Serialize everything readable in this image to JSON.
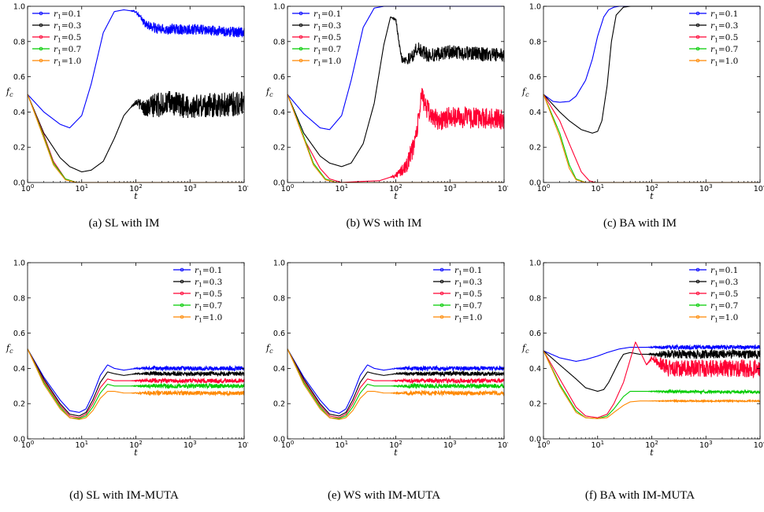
{
  "chart_data": [
    {
      "type": "line",
      "caption": "(a)  SL with IM",
      "xlabel": "t",
      "ylabel": "f_c",
      "xscale": "log",
      "xlim": [
        1,
        10000
      ],
      "ylim": [
        0,
        1.0
      ],
      "xticks": [
        "10^0",
        "10^1",
        "10^2",
        "10^3",
        "10^4"
      ],
      "yticks": [
        "0.0",
        "0.2",
        "0.4",
        "0.6",
        "0.8",
        "1.0"
      ],
      "legend_position": "top-left",
      "series": [
        {
          "name": "r1=0.1",
          "color": "#0000ff",
          "x": [
            1,
            2,
            4,
            6,
            10,
            15,
            25,
            40,
            60,
            100,
            150,
            250,
            400,
            1000,
            10000
          ],
          "y": [
            0.5,
            0.4,
            0.33,
            0.31,
            0.38,
            0.56,
            0.85,
            0.97,
            0.98,
            0.97,
            0.9,
            0.87,
            0.87,
            0.87,
            0.85
          ],
          "noise": 0.03
        },
        {
          "name": "r1=0.3",
          "color": "#000000",
          "x": [
            1,
            2,
            4,
            6,
            10,
            15,
            25,
            40,
            60,
            100,
            150,
            250,
            400,
            1000,
            10000
          ],
          "y": [
            0.5,
            0.28,
            0.14,
            0.09,
            0.06,
            0.07,
            0.12,
            0.25,
            0.38,
            0.46,
            0.42,
            0.44,
            0.45,
            0.43,
            0.45
          ],
          "noise": 0.07
        },
        {
          "name": "r1=0.5",
          "color": "#ff0033",
          "x": [
            1,
            2,
            3,
            5,
            8,
            10000
          ],
          "y": [
            0.5,
            0.27,
            0.12,
            0.02,
            0.0,
            0.0
          ],
          "noise": 0
        },
        {
          "name": "r1=0.7",
          "color": "#00cc00",
          "x": [
            1,
            2,
            3,
            5,
            8,
            10000
          ],
          "y": [
            0.5,
            0.26,
            0.11,
            0.02,
            0.0,
            0.0
          ],
          "noise": 0
        },
        {
          "name": "r1=1.0",
          "color": "#ff8800",
          "x": [
            1,
            2,
            3,
            5,
            8,
            10000
          ],
          "y": [
            0.5,
            0.25,
            0.1,
            0.015,
            0.0,
            0.0
          ],
          "noise": 0
        }
      ]
    },
    {
      "type": "line",
      "caption": "(b)  WS with IM",
      "xlabel": "t",
      "ylabel": "f_c",
      "xscale": "log",
      "xlim": [
        1,
        10000
      ],
      "ylim": [
        0,
        1.0
      ],
      "xticks": [
        "10^0",
        "10^1",
        "10^2",
        "10^3",
        "10^4"
      ],
      "yticks": [
        "0.0",
        "0.2",
        "0.4",
        "0.6",
        "0.8",
        "1.0"
      ],
      "legend_position": "top-left",
      "series": [
        {
          "name": "r1=0.1",
          "color": "#0000ff",
          "x": [
            1,
            2,
            4,
            6,
            10,
            15,
            25,
            40,
            60,
            10000
          ],
          "y": [
            0.5,
            0.39,
            0.31,
            0.3,
            0.38,
            0.58,
            0.88,
            0.99,
            1.0,
            1.0
          ],
          "noise": 0
        },
        {
          "name": "r1=0.3",
          "color": "#000000",
          "x": [
            1,
            2,
            4,
            6,
            10,
            15,
            25,
            40,
            60,
            80,
            100,
            130,
            180,
            250,
            400,
            1000,
            10000
          ],
          "y": [
            0.5,
            0.28,
            0.15,
            0.11,
            0.09,
            0.11,
            0.22,
            0.45,
            0.78,
            0.94,
            0.92,
            0.7,
            0.7,
            0.76,
            0.72,
            0.74,
            0.72
          ],
          "noise": 0.04
        },
        {
          "name": "r1=0.5",
          "color": "#ff0033",
          "x": [
            1,
            2,
            4,
            6,
            10,
            20,
            50,
            100,
            150,
            200,
            250,
            300,
            400,
            600,
            1000,
            10000
          ],
          "y": [
            0.5,
            0.25,
            0.08,
            0.02,
            0.0,
            0.005,
            0.01,
            0.04,
            0.08,
            0.18,
            0.3,
            0.5,
            0.4,
            0.35,
            0.37,
            0.36
          ],
          "noise": 0.06
        },
        {
          "name": "r1=0.7",
          "color": "#00cc00",
          "x": [
            1,
            2,
            3,
            5,
            8,
            10000
          ],
          "y": [
            0.5,
            0.26,
            0.11,
            0.02,
            0.0,
            0.0
          ],
          "noise": 0
        },
        {
          "name": "r1=1.0",
          "color": "#ff8800",
          "x": [
            1,
            2,
            3,
            5,
            8,
            10000
          ],
          "y": [
            0.5,
            0.25,
            0.1,
            0.015,
            0.0,
            0.0
          ],
          "noise": 0
        }
      ]
    },
    {
      "type": "line",
      "caption": "(c)  BA with IM",
      "xlabel": "t",
      "ylabel": "f_c",
      "xscale": "log",
      "xlim": [
        1,
        10000
      ],
      "ylim": [
        0,
        1.0
      ],
      "xticks": [
        "10^0",
        "10^1",
        "10^2",
        "10^3",
        "10^4"
      ],
      "yticks": [
        "0.0",
        "0.2",
        "0.4",
        "0.6",
        "0.8",
        "1.0"
      ],
      "legend_position": "top-right",
      "series": [
        {
          "name": "r1=0.1",
          "color": "#0000ff",
          "x": [
            1,
            1.5,
            2,
            3,
            4,
            6,
            8,
            10,
            13,
            16,
            20,
            25,
            10000
          ],
          "y": [
            0.5,
            0.46,
            0.455,
            0.46,
            0.49,
            0.58,
            0.7,
            0.83,
            0.94,
            0.98,
            0.995,
            1.0,
            1.0
          ],
          "noise": 0
        },
        {
          "name": "r1=0.3",
          "color": "#000000",
          "x": [
            1,
            2,
            3,
            5,
            8,
            10,
            12,
            15,
            18,
            22,
            30,
            40,
            10000
          ],
          "y": [
            0.5,
            0.4,
            0.35,
            0.3,
            0.28,
            0.29,
            0.35,
            0.55,
            0.8,
            0.95,
            0.995,
            1.0,
            1.0
          ],
          "noise": 0
        },
        {
          "name": "r1=0.5",
          "color": "#ff0033",
          "x": [
            1,
            2,
            3,
            5,
            7,
            9,
            10000
          ],
          "y": [
            0.5,
            0.35,
            0.22,
            0.06,
            0.01,
            0.0,
            0.0
          ],
          "noise": 0
        },
        {
          "name": "r1=0.7",
          "color": "#00cc00",
          "x": [
            1,
            2,
            3,
            4,
            6,
            10000
          ],
          "y": [
            0.5,
            0.28,
            0.1,
            0.02,
            0.0,
            0.0
          ],
          "noise": 0
        },
        {
          "name": "r1=1.0",
          "color": "#ff8800",
          "x": [
            1,
            2,
            3,
            4,
            6,
            10000
          ],
          "y": [
            0.5,
            0.26,
            0.08,
            0.015,
            0.0,
            0.0
          ],
          "noise": 0
        }
      ]
    },
    {
      "type": "line",
      "caption": "(d)  SL with IM-MUTA",
      "xlabel": "t",
      "ylabel": "f_c",
      "xscale": "log",
      "xlim": [
        1,
        10000
      ],
      "ylim": [
        0,
        1.0
      ],
      "xticks": [
        "10^0",
        "10^1",
        "10^2",
        "10^3",
        "10^4"
      ],
      "yticks": [
        "0.0",
        "0.2",
        "0.4",
        "0.6",
        "0.8",
        "1.0"
      ],
      "legend_position": "top-right",
      "series": [
        {
          "name": "r1=0.1",
          "color": "#0000ff",
          "x": [
            1,
            2,
            4,
            6,
            9,
            12,
            16,
            22,
            30,
            40,
            60,
            100,
            10000
          ],
          "y": [
            0.51,
            0.35,
            0.22,
            0.16,
            0.15,
            0.17,
            0.25,
            0.36,
            0.42,
            0.4,
            0.39,
            0.4,
            0.4
          ],
          "noise": 0.012
        },
        {
          "name": "r1=0.3",
          "color": "#000000",
          "x": [
            1,
            2,
            4,
            6,
            9,
            12,
            16,
            22,
            30,
            40,
            60,
            100,
            10000
          ],
          "y": [
            0.51,
            0.34,
            0.2,
            0.14,
            0.13,
            0.15,
            0.22,
            0.32,
            0.38,
            0.37,
            0.36,
            0.37,
            0.37
          ],
          "noise": 0.012
        },
        {
          "name": "r1=0.5",
          "color": "#ff0033",
          "x": [
            1,
            2,
            4,
            6,
            9,
            12,
            16,
            22,
            30,
            40,
            60,
            100,
            10000
          ],
          "y": [
            0.51,
            0.33,
            0.19,
            0.13,
            0.12,
            0.14,
            0.2,
            0.29,
            0.34,
            0.33,
            0.33,
            0.33,
            0.33
          ],
          "noise": 0.012
        },
        {
          "name": "r1=0.7",
          "color": "#00cc00",
          "x": [
            1,
            2,
            4,
            6,
            9,
            12,
            16,
            22,
            30,
            40,
            60,
            100,
            10000
          ],
          "y": [
            0.51,
            0.32,
            0.18,
            0.12,
            0.115,
            0.13,
            0.18,
            0.26,
            0.31,
            0.3,
            0.3,
            0.3,
            0.3
          ],
          "noise": 0.012
        },
        {
          "name": "r1=1.0",
          "color": "#ff8800",
          "x": [
            1,
            2,
            4,
            6,
            9,
            12,
            16,
            22,
            30,
            40,
            60,
            100,
            10000
          ],
          "y": [
            0.51,
            0.31,
            0.17,
            0.12,
            0.11,
            0.12,
            0.16,
            0.23,
            0.27,
            0.27,
            0.26,
            0.26,
            0.26
          ],
          "noise": 0.012
        }
      ]
    },
    {
      "type": "line",
      "caption": "(e)  WS with IM-MUTA",
      "xlabel": "t",
      "ylabel": "f_c",
      "xscale": "log",
      "xlim": [
        1,
        10000
      ],
      "ylim": [
        0,
        1.0
      ],
      "xticks": [
        "10^0",
        "10^1",
        "10^2",
        "10^3",
        "10^4"
      ],
      "yticks": [
        "0.0",
        "0.2",
        "0.4",
        "0.6",
        "0.8",
        "1.0"
      ],
      "legend_position": "top-right",
      "series": [
        {
          "name": "r1=0.1",
          "color": "#0000ff",
          "x": [
            1,
            2,
            4,
            6,
            9,
            12,
            16,
            22,
            30,
            40,
            60,
            100,
            10000
          ],
          "y": [
            0.51,
            0.35,
            0.22,
            0.16,
            0.145,
            0.17,
            0.25,
            0.36,
            0.42,
            0.4,
            0.39,
            0.4,
            0.4
          ],
          "noise": 0.012
        },
        {
          "name": "r1=0.3",
          "color": "#000000",
          "x": [
            1,
            2,
            4,
            6,
            9,
            12,
            16,
            22,
            30,
            40,
            60,
            100,
            10000
          ],
          "y": [
            0.51,
            0.34,
            0.2,
            0.14,
            0.13,
            0.15,
            0.22,
            0.32,
            0.38,
            0.37,
            0.36,
            0.37,
            0.37
          ],
          "noise": 0.012
        },
        {
          "name": "r1=0.5",
          "color": "#ff0033",
          "x": [
            1,
            2,
            4,
            6,
            9,
            12,
            16,
            22,
            30,
            40,
            60,
            100,
            10000
          ],
          "y": [
            0.51,
            0.33,
            0.19,
            0.13,
            0.12,
            0.14,
            0.2,
            0.29,
            0.34,
            0.33,
            0.33,
            0.33,
            0.33
          ],
          "noise": 0.012
        },
        {
          "name": "r1=0.7",
          "color": "#00cc00",
          "x": [
            1,
            2,
            4,
            6,
            9,
            12,
            16,
            22,
            30,
            40,
            60,
            100,
            10000
          ],
          "y": [
            0.51,
            0.32,
            0.18,
            0.12,
            0.115,
            0.13,
            0.18,
            0.26,
            0.31,
            0.3,
            0.3,
            0.3,
            0.3
          ],
          "noise": 0.012
        },
        {
          "name": "r1=1.0",
          "color": "#ff8800",
          "x": [
            1,
            2,
            4,
            6,
            9,
            12,
            16,
            22,
            30,
            40,
            60,
            100,
            10000
          ],
          "y": [
            0.51,
            0.31,
            0.17,
            0.12,
            0.11,
            0.12,
            0.16,
            0.23,
            0.27,
            0.27,
            0.26,
            0.26,
            0.26
          ],
          "noise": 0.012
        }
      ]
    },
    {
      "type": "line",
      "caption": "(f)  BA with IM-MUTA",
      "xlabel": "t",
      "ylabel": "f_c",
      "xscale": "log",
      "xlim": [
        1,
        10000
      ],
      "ylim": [
        0,
        1.0
      ],
      "xticks": [
        "10^0",
        "10^1",
        "10^2",
        "10^3",
        "10^4"
      ],
      "yticks": [
        "0.0",
        "0.2",
        "0.4",
        "0.6",
        "0.8",
        "1.0"
      ],
      "legend_position": "top-right",
      "series": [
        {
          "name": "r1=0.1",
          "color": "#0000ff",
          "x": [
            1,
            2,
            4,
            6,
            10,
            15,
            25,
            40,
            60,
            100,
            10000
          ],
          "y": [
            0.5,
            0.46,
            0.44,
            0.45,
            0.47,
            0.49,
            0.51,
            0.52,
            0.52,
            0.52,
            0.52
          ],
          "noise": 0.012
        },
        {
          "name": "r1=0.3",
          "color": "#000000",
          "x": [
            1,
            2,
            4,
            6,
            10,
            13,
            16,
            20,
            25,
            30,
            40,
            60,
            100,
            10000
          ],
          "y": [
            0.5,
            0.42,
            0.34,
            0.29,
            0.27,
            0.28,
            0.32,
            0.38,
            0.44,
            0.48,
            0.49,
            0.48,
            0.48,
            0.48
          ],
          "noise": 0.025
        },
        {
          "name": "r1=0.5",
          "color": "#ff0033",
          "x": [
            1,
            2,
            4,
            6,
            10,
            15,
            20,
            30,
            40,
            50,
            60,
            80,
            100,
            200,
            10000
          ],
          "y": [
            0.5,
            0.34,
            0.18,
            0.13,
            0.12,
            0.14,
            0.2,
            0.32,
            0.45,
            0.55,
            0.5,
            0.42,
            0.46,
            0.4,
            0.4
          ],
          "noise": 0.05
        },
        {
          "name": "r1=0.7",
          "color": "#00cc00",
          "x": [
            1,
            2,
            4,
            6,
            10,
            15,
            20,
            30,
            40,
            60,
            10000
          ],
          "y": [
            0.5,
            0.31,
            0.16,
            0.12,
            0.115,
            0.13,
            0.17,
            0.24,
            0.27,
            0.27,
            0.265
          ],
          "noise": 0.008
        },
        {
          "name": "r1=1.0",
          "color": "#ff8800",
          "x": [
            1,
            2,
            4,
            6,
            10,
            15,
            20,
            30,
            40,
            60,
            10000
          ],
          "y": [
            0.5,
            0.3,
            0.15,
            0.12,
            0.115,
            0.12,
            0.15,
            0.19,
            0.21,
            0.215,
            0.215
          ],
          "noise": 0.004
        }
      ]
    }
  ]
}
